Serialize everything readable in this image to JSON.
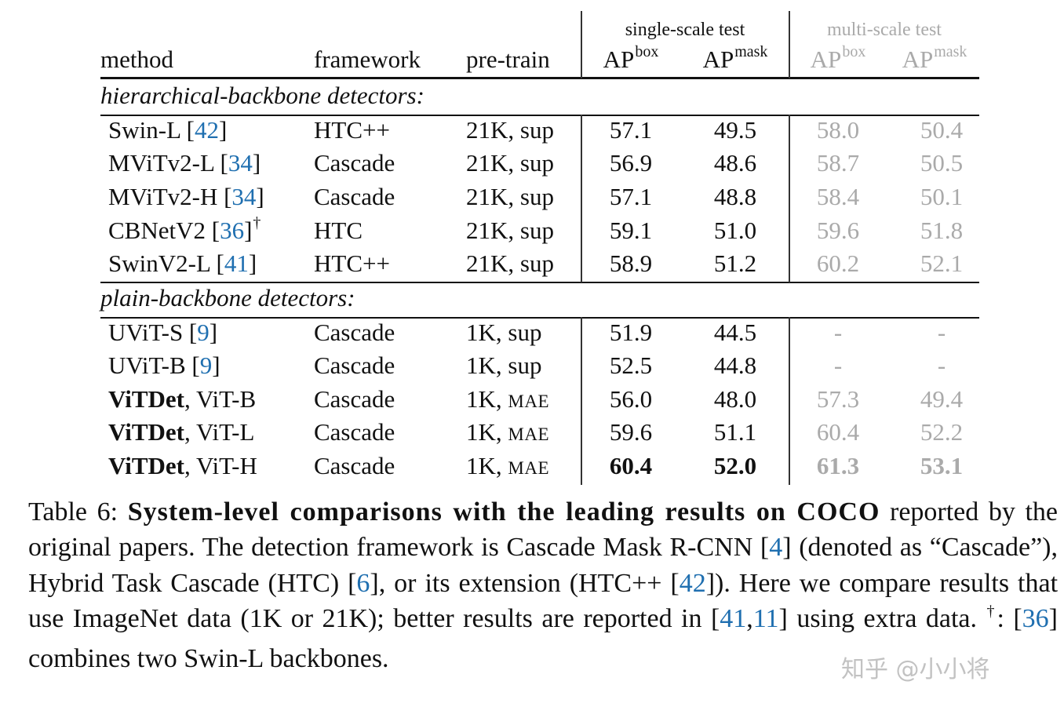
{
  "header": {
    "method": "method",
    "framework": "framework",
    "pretrain": "pre-train",
    "single_scale": "single-scale test",
    "multi_scale": "multi-scale test",
    "ap": "AP",
    "box": "box",
    "mask": "mask"
  },
  "sections": [
    {
      "title": "hierarchical-backbone detectors:",
      "rows": [
        {
          "name": "Swin-L [",
          "cite": "42",
          "close": "]",
          "sup": "",
          "framework": "HTC++",
          "pretrain": "21K, sup",
          "pt_small": "",
          "ss_box": "57.1",
          "ss_mask": "49.5",
          "ms_box": "58.0",
          "ms_mask": "50.4"
        },
        {
          "name": "MViTv2-L [",
          "cite": "34",
          "close": "]",
          "sup": "",
          "framework": "Cascade",
          "pretrain": "21K, sup",
          "pt_small": "",
          "ss_box": "56.9",
          "ss_mask": "48.6",
          "ms_box": "58.7",
          "ms_mask": "50.5"
        },
        {
          "name": "MViTv2-H [",
          "cite": "34",
          "close": "]",
          "sup": "",
          "framework": "Cascade",
          "pretrain": "21K, sup",
          "pt_small": "",
          "ss_box": "57.1",
          "ss_mask": "48.8",
          "ms_box": "58.4",
          "ms_mask": "50.1"
        },
        {
          "name": "CBNetV2 [",
          "cite": "36",
          "close": "]",
          "sup": "†",
          "framework": "HTC",
          "pretrain": "21K, sup",
          "pt_small": "",
          "ss_box": "59.1",
          "ss_mask": "51.0",
          "ms_box": "59.6",
          "ms_mask": "51.8"
        },
        {
          "name": "SwinV2-L [",
          "cite": "41",
          "close": "]",
          "sup": "",
          "framework": "HTC++",
          "pretrain": "21K, sup",
          "pt_small": "",
          "ss_box": "58.9",
          "ss_mask": "51.2",
          "ms_box": "60.2",
          "ms_mask": "52.1"
        }
      ]
    },
    {
      "title": "plain-backbone detectors:",
      "rows": [
        {
          "name": "UViT-S [",
          "cite": "9",
          "close": "]",
          "sup": "",
          "framework": "Cascade",
          "pretrain": "1K, sup",
          "pt_small": "",
          "ss_box": "51.9",
          "ss_mask": "44.5",
          "ms_box": "-",
          "ms_mask": "-"
        },
        {
          "name": "UViT-B [",
          "cite": "9",
          "close": "]",
          "sup": "",
          "framework": "Cascade",
          "pretrain": "1K, sup",
          "pt_small": "",
          "ss_box": "52.5",
          "ss_mask": "44.8",
          "ms_box": "-",
          "ms_mask": "-"
        },
        {
          "bold_name": "ViTDet",
          "name_rest": ", ViT-B",
          "framework": "Cascade",
          "pretrain": "1K, ",
          "pt_small": "MAE",
          "ss_box": "56.0",
          "ss_mask": "48.0",
          "ms_box": "57.3",
          "ms_mask": "49.4"
        },
        {
          "bold_name": "ViTDet",
          "name_rest": ", ViT-L",
          "framework": "Cascade",
          "pretrain": "1K, ",
          "pt_small": "MAE",
          "ss_box": "59.6",
          "ss_mask": "51.1",
          "ms_box": "60.4",
          "ms_mask": "52.2"
        },
        {
          "bold_name": "ViTDet",
          "name_rest": ", ViT-H",
          "framework": "Cascade",
          "pretrain": "1K, ",
          "pt_small": "MAE",
          "ss_box": "60.4",
          "ss_mask": "52.0",
          "ms_box": "61.3",
          "ms_mask": "53.1",
          "bold_values": true
        }
      ]
    }
  ],
  "caption": {
    "label": "Table 6: ",
    "title": "System-level comparisons with the leading results on COCO",
    "t1": " reported by the original papers. The detection framework is Cascade Mask R-CNN [",
    "c1": "4",
    "t2": "] (denoted as “Cascade”), Hybrid Task Cascade (HTC) [",
    "c2": "6",
    "t3": "], or its extension (HTC++ [",
    "c3": "42",
    "t4": "]). Here we compare results that use ImageNet data (1K or 21K); better results are reported in [",
    "c4": "41",
    "t5": ",",
    "c5": "11",
    "t6": "] using extra data. ",
    "dagger": "†",
    "t7": ": [",
    "c6": "36",
    "t8": "] combines two Swin-L backbones."
  },
  "watermark": "知乎 @小小将"
}
